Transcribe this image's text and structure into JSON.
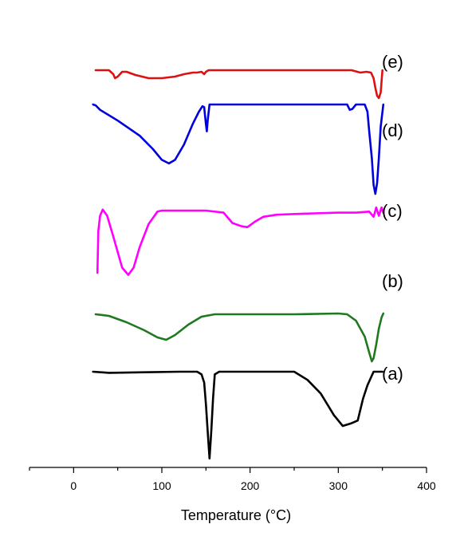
{
  "chart_data": {
    "type": "line",
    "title": "",
    "xlabel": "Temperature (°C)",
    "ylabel": "",
    "xlim": [
      -50,
      400
    ],
    "xticks": [
      0,
      100,
      200,
      300,
      400
    ],
    "xtick_labels": [
      "0",
      "100",
      "200",
      "300",
      "400"
    ],
    "grid": false,
    "legend": "labels-at-right",
    "series": [
      {
        "label": "(a)",
        "color": "#000000",
        "x": [
          22,
          40,
          80,
          120,
          140,
          145,
          148,
          150,
          152,
          154,
          156,
          158,
          160,
          165,
          200,
          250,
          265,
          280,
          295,
          305,
          315,
          322,
          328,
          333,
          340,
          350
        ],
        "y": [
          0,
          -0.4,
          -0.2,
          0,
          0,
          -1,
          -4,
          -12,
          -22,
          -32,
          -22,
          -10,
          -1,
          0,
          0,
          0,
          -3,
          -8,
          -16,
          -20,
          -19,
          -18,
          -10,
          -5,
          0,
          0
        ]
      },
      {
        "label": "(b)",
        "color": "#1f7a1f",
        "x": [
          25,
          40,
          60,
          80,
          95,
          105,
          115,
          130,
          145,
          160,
          200,
          250,
          300,
          310,
          320,
          330,
          335,
          338,
          340,
          343,
          346,
          349,
          351
        ],
        "y": [
          -22,
          -24,
          -32,
          -42,
          -51,
          -54,
          -48,
          -35,
          -25,
          -22,
          -22,
          -22,
          -21,
          -22,
          -30,
          -50,
          -70,
          -81,
          -77,
          -60,
          -40,
          -26,
          -21
        ]
      },
      {
        "label": "(c)",
        "color": "#ff00ff",
        "x": [
          27,
          28,
          30,
          33,
          38,
          45,
          55,
          62,
          68,
          75,
          85,
          95,
          100,
          110,
          150,
          170,
          180,
          190,
          197,
          205,
          215,
          230,
          260,
          300,
          320,
          335,
          340,
          343,
          346,
          349,
          351
        ],
        "y": [
          -80,
          -40,
          -25,
          -19,
          -25,
          -45,
          -75,
          -82,
          -75,
          -55,
          -33,
          -21,
          -20,
          -20,
          -20,
          -22,
          -32,
          -35,
          -36,
          -31,
          -26,
          -24,
          -23,
          -22,
          -22,
          -21,
          -26,
          -17,
          -25,
          -17,
          -22
        ]
      },
      {
        "label": "(d)",
        "color": "#0000dd",
        "x": [
          22,
          25,
          30,
          50,
          75,
          90,
          100,
          108,
          115,
          125,
          135,
          142,
          146,
          148,
          150,
          151,
          152,
          154,
          160,
          200,
          250,
          300,
          310,
          313,
          316,
          320,
          325,
          330,
          333,
          335,
          338,
          340,
          342,
          344,
          346,
          348,
          351
        ],
        "y": [
          0,
          -1,
          -6,
          -18,
          -35,
          -50,
          -62,
          -66,
          -62,
          -45,
          -22,
          -8,
          -2,
          -3,
          -22,
          -30,
          -18,
          0,
          0,
          0,
          0,
          0,
          0,
          -6,
          -5,
          0,
          0,
          0,
          -8,
          -30,
          -60,
          -90,
          -100,
          -88,
          -60,
          -25,
          0
        ]
      },
      {
        "label": "(e)",
        "color": "#dd1111",
        "x": [
          25,
          40,
          45,
          47,
          50,
          55,
          60,
          70,
          85,
          100,
          115,
          125,
          135,
          140,
          145,
          148,
          150,
          153,
          160,
          200,
          250,
          300,
          315,
          325,
          332,
          337,
          340,
          342,
          344,
          346,
          348,
          350
        ],
        "y": [
          0,
          0,
          -5,
          -10,
          -8,
          -2,
          -2,
          -6,
          -10,
          -10,
          -8,
          -5,
          -3,
          -3,
          -2,
          -5,
          -2,
          0,
          0,
          0,
          0,
          0,
          0,
          -3,
          -2,
          -3,
          -10,
          -22,
          -32,
          -35,
          -28,
          0
        ]
      }
    ]
  }
}
